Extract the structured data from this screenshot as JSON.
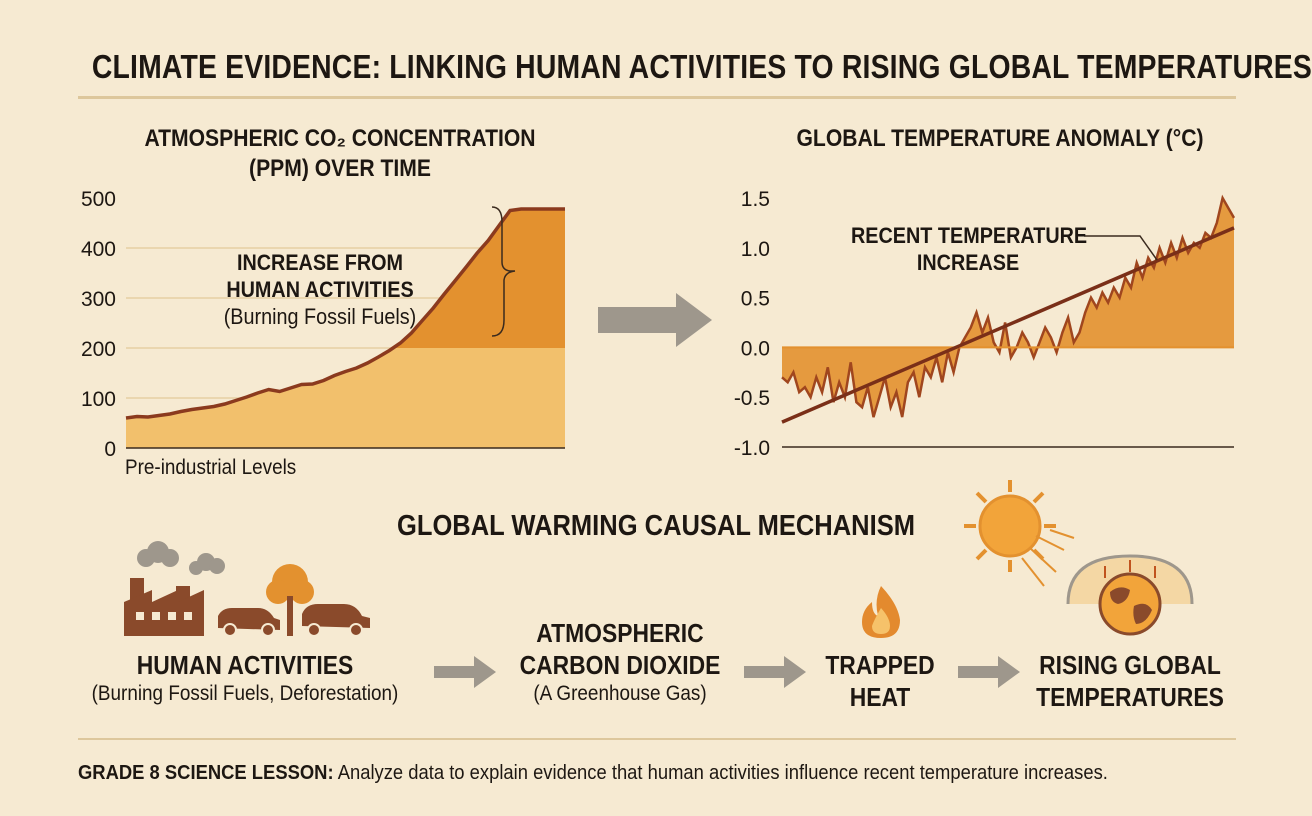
{
  "title": "CLIMATE EVIDENCE: LINKING HUMAN ACTIVITIES TO RISING GLOBAL TEMPERATURES",
  "colors": {
    "background": "#f6ead2",
    "fill_light": "#f2c06c",
    "fill_dark": "#e3912f",
    "line": "#8b3a1e",
    "arrow": "#9e978c",
    "icon": "#8a4a2b"
  },
  "chart_data": [
    {
      "type": "area",
      "title_line1": "ATMOSPHERIC CO₂ CONCENTRATION",
      "title_line2": "(PPM) OVER TIME",
      "ylim": [
        0,
        500
      ],
      "y_ticks": [
        "500",
        "400",
        "300",
        "200",
        "100",
        "0"
      ],
      "y_tick_values": [
        500,
        400,
        300,
        200,
        100,
        0
      ],
      "x_label": "Pre-industrial Levels",
      "reference_value": 200,
      "x": [
        0,
        1,
        2,
        3,
        4,
        5,
        6,
        7,
        8,
        9,
        10,
        11,
        12,
        13,
        14,
        15,
        16,
        17,
        18,
        19,
        20,
        21,
        22,
        23,
        24,
        25,
        26,
        27,
        28,
        29,
        30,
        31,
        32,
        33,
        34,
        35,
        36,
        37,
        38,
        39,
        40
      ],
      "values": [
        60,
        63,
        62,
        65,
        68,
        73,
        77,
        80,
        83,
        88,
        95,
        102,
        110,
        117,
        113,
        120,
        127,
        128,
        135,
        145,
        153,
        160,
        170,
        182,
        195,
        210,
        230,
        255,
        280,
        308,
        335,
        362,
        390,
        415,
        445,
        475,
        478,
        478,
        478,
        478,
        478
      ],
      "annotation_line1": "INCREASE FROM",
      "annotation_line2": "HUMAN ACTIVITIES",
      "annotation_line3": "(Burning Fossil Fuels)"
    },
    {
      "type": "area",
      "title": "GLOBAL TEMPERATURE ANOMALY (°C)",
      "ylim": [
        -1.0,
        1.5
      ],
      "y_ticks": [
        "1.5",
        "1.0",
        "0.5",
        "0.0",
        "-0.5",
        "-1.0"
      ],
      "y_tick_values": [
        1.5,
        1.0,
        0.5,
        0.0,
        -0.5,
        -1.0
      ],
      "x": [
        0,
        1,
        2,
        3,
        4,
        5,
        6,
        7,
        8,
        9,
        10,
        11,
        12,
        13,
        14,
        15,
        16,
        17,
        18,
        19,
        20,
        21,
        22,
        23,
        24,
        25,
        26,
        27,
        28,
        29,
        30,
        31,
        32,
        33,
        34,
        35,
        36,
        37,
        38,
        39,
        40,
        41,
        42,
        43,
        44,
        45,
        46,
        47,
        48,
        49,
        50,
        51,
        52,
        53,
        54,
        55,
        56,
        57,
        58,
        59,
        60,
        61,
        62,
        63,
        64,
        65,
        66,
        67,
        68,
        69,
        70,
        71,
        72,
        73,
        74,
        75,
        76,
        77,
        78,
        79
      ],
      "values": [
        -0.3,
        -0.35,
        -0.25,
        -0.45,
        -0.4,
        -0.5,
        -0.3,
        -0.45,
        -0.2,
        -0.55,
        -0.35,
        -0.5,
        -0.15,
        -0.55,
        -0.6,
        -0.4,
        -0.7,
        -0.5,
        -0.3,
        -0.6,
        -0.45,
        -0.7,
        -0.35,
        -0.25,
        -0.5,
        -0.2,
        -0.3,
        -0.1,
        -0.35,
        -0.05,
        -0.25,
        0.0,
        0.1,
        0.2,
        0.35,
        0.15,
        0.3,
        0.05,
        -0.05,
        0.25,
        -0.1,
        0.0,
        0.15,
        0.05,
        -0.1,
        0.05,
        0.2,
        0.1,
        -0.05,
        0.15,
        0.3,
        0.05,
        0.15,
        0.35,
        0.5,
        0.4,
        0.55,
        0.45,
        0.6,
        0.5,
        0.7,
        0.6,
        0.85,
        0.7,
        0.9,
        0.8,
        1.0,
        0.85,
        1.05,
        0.9,
        1.1,
        0.95,
        1.05,
        1.0,
        1.15,
        1.1,
        1.25,
        1.5,
        1.4,
        1.3
      ],
      "trend": [
        -0.75,
        1.2
      ],
      "annotation_line1": "RECENT TEMPERATURE",
      "annotation_line2": "INCREASE"
    }
  ],
  "mechanism": {
    "title": "GLOBAL WARMING CAUSAL MECHANISM",
    "steps": [
      {
        "heading": "HUMAN ACTIVITIES",
        "detail": "(Burning Fossil Fuels, Deforestation)",
        "icon": "factory-car-tree-icon"
      },
      {
        "heading_line1": "ATMOSPHERIC",
        "heading_line2": "CARBON DIOXIDE",
        "detail": "(A Greenhouse Gas)"
      },
      {
        "heading_line1": "TRAPPED",
        "heading_line2": "HEAT",
        "icon": "flame-icon"
      },
      {
        "heading_line1": "RISING GLOBAL",
        "heading_line2": "TEMPERATURES",
        "icon": "sun-earth-icon"
      }
    ]
  },
  "footer": {
    "label": "GRADE 8 SCIENCE LESSON:",
    "text": " Analyze data to explain evidence that human activities influence recent temperature increases."
  }
}
